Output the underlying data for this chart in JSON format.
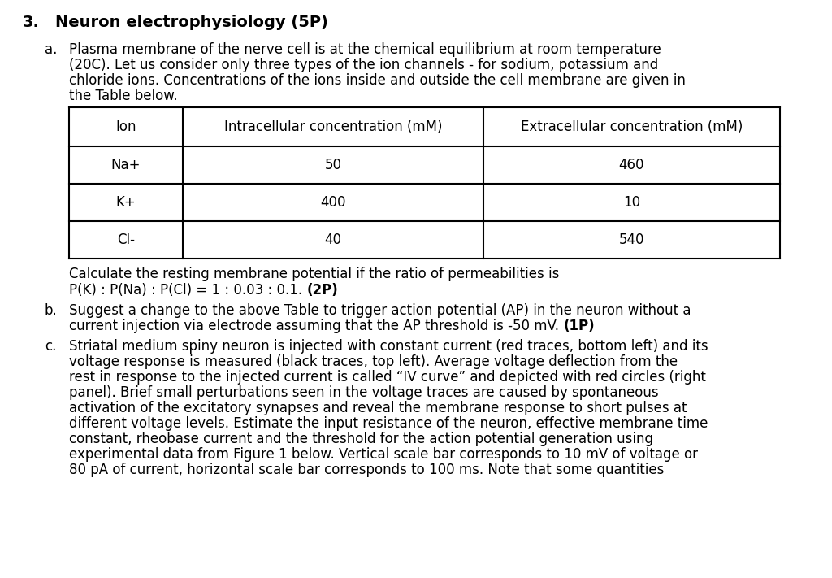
{
  "background_color": "#ffffff",
  "title_num": "3.",
  "title_text": "Neuron electrophysiology (5P)",
  "title_fontsize": 14,
  "body_fontsize": 12,
  "table_header": [
    "Ion",
    "Intracellular concentration (mM)",
    "Extracellular concentration (mM)"
  ],
  "table_rows": [
    [
      "Na+",
      "50",
      "460"
    ],
    [
      "K+",
      "400",
      "10"
    ],
    [
      "Cl-",
      "40",
      "540"
    ]
  ],
  "para_a_lines": [
    "Plasma membrane of the nerve cell is at the chemical equilibrium at room temperature",
    "(20C). Let us consider only three types of the ion channels - for sodium, potassium and",
    "chloride ions. Concentrations of the ions inside and outside the cell membrane are given in",
    "the Table below."
  ],
  "calc_line1": "Calculate the resting membrane potential if the ratio of permeabilities is",
  "calc_line2_normal": "P(K) : P(Na) : P(Cl) = 1 : 0.03 : 0.1. ",
  "calc_line2_bold": "(2P)",
  "para_b_line1": "Suggest a change to the above Table to trigger action potential (AP) in the neuron without a",
  "para_b_line2_normal": "current injection via electrode assuming that the AP threshold is -50 mV. ",
  "para_b_line2_bold": "(1P)",
  "para_c_lines": [
    "Striatal medium spiny neuron is injected with constant current (red traces, bottom left) and its",
    "voltage response is measured (black traces, top left). Average voltage deflection from the",
    "rest in response to the injected current is called “IV curve” and depicted with red circles (right",
    "panel). Brief small perturbations seen in the voltage traces are caused by spontaneous",
    "activation of the excitatory synapses and reveal the membrane response to short pulses at",
    "different voltage levels. Estimate the input resistance of the neuron, effective membrane time",
    "constant, rheobase current and the threshold for the action potential generation using",
    "experimental data from Figure 1 below. Vertical scale bar corresponds to 10 mV of voltage or",
    "80 pA of current, horizontal scale bar corresponds to 100 ms. Note that some quantities"
  ]
}
